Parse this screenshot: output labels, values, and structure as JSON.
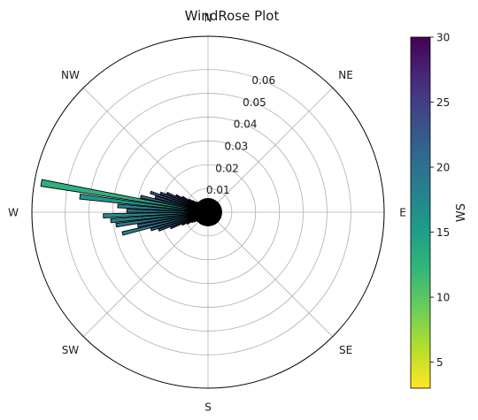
{
  "chart_data": {
    "type": "windrose",
    "title": "WindRose Plot",
    "directions": [
      "N",
      "NE",
      "E",
      "SE",
      "S",
      "SW",
      "W",
      "NW"
    ],
    "radial_ticks": [
      0.01,
      0.02,
      0.03,
      0.04,
      0.05,
      0.06
    ],
    "radial_tick_labels": [
      "0.01",
      "0.02",
      "0.03",
      "0.04",
      "0.05",
      "0.06"
    ],
    "rmax": 0.074,
    "grid": true,
    "colorbar": {
      "label": "WS",
      "min": 3,
      "max": 30,
      "ticks": [
        5,
        10,
        15,
        20,
        25,
        30
      ],
      "tick_labels": [
        "5",
        "10",
        "15",
        "20",
        "25",
        "30"
      ],
      "colormap": "viridis_r",
      "stops": [
        "#fde725",
        "#b5de2b",
        "#6ece58",
        "#35b779",
        "#1f9e89",
        "#26828e",
        "#31688e",
        "#3e4989",
        "#482878",
        "#440154"
      ]
    },
    "bars": [
      {
        "direction_deg": 280,
        "r_inner": 0.002,
        "r_outer": 0.0711,
        "ws": 13
      },
      {
        "direction_deg": 277,
        "r_inner": 0.002,
        "r_outer": 0.0542,
        "ws": 16
      },
      {
        "direction_deg": 274,
        "r_inner": 0.002,
        "r_outer": 0.038,
        "ws": 18
      },
      {
        "direction_deg": 271,
        "r_inner": 0.002,
        "r_outer": 0.0341,
        "ws": 20
      },
      {
        "direction_deg": 268,
        "r_inner": 0.002,
        "r_outer": 0.044,
        "ws": 17
      },
      {
        "direction_deg": 265,
        "r_inner": 0.002,
        "r_outer": 0.041,
        "ws": 18
      },
      {
        "direction_deg": 262,
        "r_inner": 0.002,
        "r_outer": 0.039,
        "ws": 19
      },
      {
        "direction_deg": 259,
        "r_inner": 0.002,
        "r_outer": 0.03,
        "ws": 21
      },
      {
        "direction_deg": 256,
        "r_inner": 0.002,
        "r_outer": 0.037,
        "ws": 18
      },
      {
        "direction_deg": 253,
        "r_inner": 0.002,
        "r_outer": 0.025,
        "ws": 22
      },
      {
        "direction_deg": 250,
        "r_inner": 0.002,
        "r_outer": 0.022,
        "ws": 22
      },
      {
        "direction_deg": 247,
        "r_inner": 0.002,
        "r_outer": 0.017,
        "ws": 24
      },
      {
        "direction_deg": 244,
        "r_inner": 0.002,
        "r_outer": 0.012,
        "ws": 25
      },
      {
        "direction_deg": 241,
        "r_inner": 0.002,
        "r_outer": 0.01,
        "ws": 26
      },
      {
        "direction_deg": 238,
        "r_inner": 0.002,
        "r_outer": 0.008,
        "ws": 27
      },
      {
        "direction_deg": 235,
        "r_inner": 0.002,
        "r_outer": 0.007,
        "ws": 27
      },
      {
        "direction_deg": 283,
        "r_inner": 0.002,
        "r_outer": 0.029,
        "ws": 21
      },
      {
        "direction_deg": 286,
        "r_inner": 0.002,
        "r_outer": 0.023,
        "ws": 22
      },
      {
        "direction_deg": 289,
        "r_inner": 0.002,
        "r_outer": 0.0255,
        "ws": 22
      },
      {
        "direction_deg": 292,
        "r_inner": 0.002,
        "r_outer": 0.0215,
        "ws": 23
      },
      {
        "direction_deg": 295,
        "r_inner": 0.002,
        "r_outer": 0.019,
        "ws": 23
      },
      {
        "direction_deg": 298,
        "r_inner": 0.002,
        "r_outer": 0.0152,
        "ws": 25
      },
      {
        "direction_deg": 301,
        "r_inner": 0.002,
        "r_outer": 0.0125,
        "ws": 26
      },
      {
        "direction_deg": 304,
        "r_inner": 0.002,
        "r_outer": 0.0095,
        "ws": 26
      },
      {
        "direction_deg": 307,
        "r_inner": 0.002,
        "r_outer": 0.008,
        "ws": 27
      },
      {
        "direction_deg": 310,
        "r_inner": 0.002,
        "r_outer": 0.0068,
        "ws": 27
      },
      {
        "direction_deg": 313,
        "r_inner": 0.002,
        "r_outer": 0.006,
        "ws": 28
      },
      {
        "direction_deg": 316,
        "r_inner": 0.002,
        "r_outer": 0.0052,
        "ws": 28
      },
      {
        "direction_deg": 232,
        "r_inner": 0.002,
        "r_outer": 0.006,
        "ws": 28
      },
      {
        "direction_deg": 229,
        "r_inner": 0.002,
        "r_outer": 0.005,
        "ws": 28
      }
    ]
  }
}
